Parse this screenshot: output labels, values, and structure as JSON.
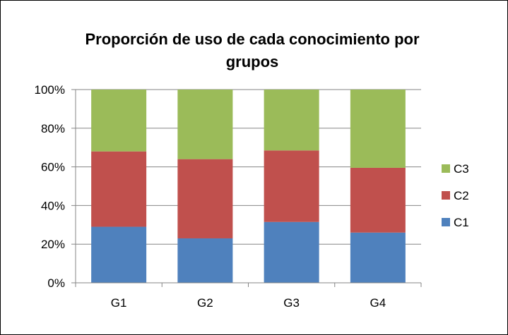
{
  "chart_data": {
    "type": "bar",
    "stacked": true,
    "percent": true,
    "title": "Proporción de uso de cada conocimiento por grupos",
    "title_lines": [
      "Proporción de uso de cada conocimiento por",
      "grupos"
    ],
    "categories": [
      "G1",
      "G2",
      "G3",
      "G4"
    ],
    "series": [
      {
        "name": "C1",
        "values": [
          29,
          23,
          31.5,
          26
        ],
        "color": "#4F81BD"
      },
      {
        "name": "C2",
        "values": [
          39,
          41,
          37,
          33.5
        ],
        "color": "#C0504D"
      },
      {
        "name": "C3",
        "values": [
          32,
          36,
          31.5,
          40.5
        ],
        "color": "#9BBB59"
      }
    ],
    "y_ticks": [
      "0%",
      "20%",
      "40%",
      "60%",
      "80%",
      "100%"
    ],
    "ylim": [
      0,
      100
    ],
    "legend_position": "right",
    "legend_order": [
      "C3",
      "C2",
      "C1"
    ],
    "grid": "horizontal",
    "xlabel": "",
    "ylabel": ""
  }
}
